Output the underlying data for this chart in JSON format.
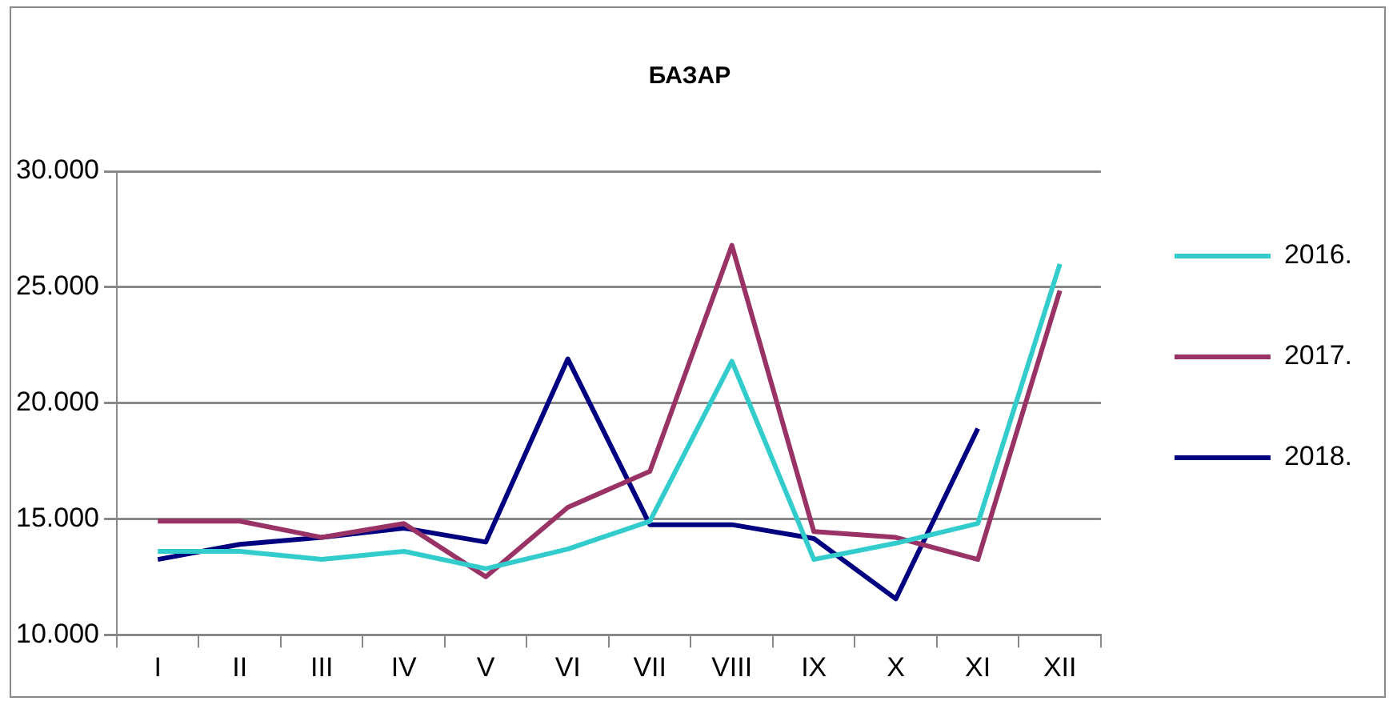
{
  "chart_data": {
    "type": "line",
    "title": "БАЗАР",
    "categories": [
      "I",
      "II",
      "III",
      "IV",
      "V",
      "VI",
      "VII",
      "VIII",
      "IX",
      "X",
      "XI",
      "XII"
    ],
    "series": [
      {
        "name": "2016.",
        "color": "#33cccc",
        "values": [
          13600,
          13600,
          13250,
          13600,
          12850,
          13700,
          14900,
          21800,
          13250,
          13950,
          14800,
          26000
        ]
      },
      {
        "name": "2017.",
        "color": "#993366",
        "values": [
          14900,
          14900,
          14200,
          14800,
          12500,
          15500,
          17050,
          26800,
          14450,
          14200,
          13250,
          24850
        ]
      },
      {
        "name": "2018.",
        "color": "#000080",
        "values": [
          13250,
          13900,
          14200,
          14600,
          14000,
          21900,
          14750,
          14750,
          14150,
          11550,
          18900,
          null
        ]
      }
    ],
    "ylim": [
      10000,
      30000
    ],
    "yticks": [
      {
        "value": 10000,
        "label": "10.000"
      },
      {
        "value": 15000,
        "label": "15.000"
      },
      {
        "value": 20000,
        "label": "20.000"
      },
      {
        "value": 25000,
        "label": "25.000"
      },
      {
        "value": 30000,
        "label": "30.000"
      }
    ],
    "grid": "y",
    "legend": "right",
    "marker": "none",
    "line_style": "solid"
  }
}
